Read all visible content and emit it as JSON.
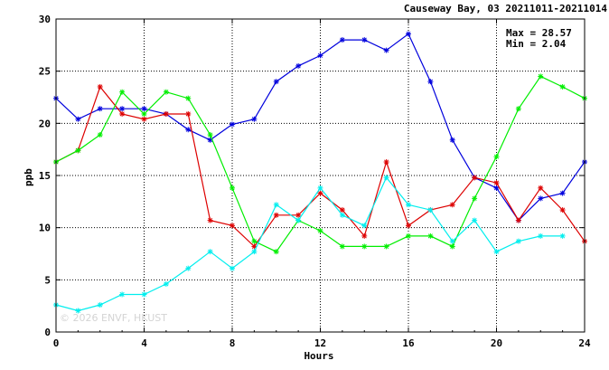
{
  "chart_data": {
    "type": "line",
    "title": "Causeway Bay, 03 20211011-20211014",
    "xlabel": "Hours",
    "ylabel": "ppb",
    "xlim": [
      0,
      24
    ],
    "ylim": [
      0,
      30
    ],
    "xticks": [
      "0",
      "4",
      "8",
      "12",
      "16",
      "20",
      "24"
    ],
    "yticks": [
      "0",
      "5",
      "10",
      "15",
      "20",
      "25",
      "30"
    ],
    "grid": true,
    "stats": {
      "max_label": "Max = 28.57",
      "min_label": "Min =  2.04"
    },
    "watermark": "© 2026 ENVF, HKUST",
    "series": [
      {
        "color": "#0000dd",
        "x": [
          0,
          1,
          2,
          3,
          4,
          5,
          6,
          7,
          8,
          9,
          10,
          11,
          12,
          13,
          14,
          15,
          16,
          17,
          18,
          19,
          20,
          21,
          22,
          23,
          24
        ],
        "y": [
          22.4,
          20.4,
          21.4,
          21.4,
          21.4,
          20.9,
          19.4,
          18.4,
          19.9,
          20.4,
          24.0,
          25.5,
          26.5,
          28.0,
          28.0,
          27.0,
          28.57,
          24.0,
          18.4,
          14.8,
          13.8,
          10.7,
          12.8,
          13.3,
          16.3
        ]
      },
      {
        "color": "#dd0000",
        "x": [
          0,
          1,
          2,
          3,
          4,
          5,
          6,
          7,
          8,
          9,
          10,
          11,
          12,
          13,
          14,
          15,
          16,
          17,
          18,
          19,
          20,
          21,
          22,
          23,
          24
        ],
        "y": [
          16.3,
          17.4,
          23.5,
          20.9,
          20.4,
          20.9,
          20.9,
          10.7,
          10.2,
          8.2,
          11.2,
          11.2,
          13.3,
          11.7,
          9.2,
          16.3,
          10.2,
          11.7,
          12.2,
          14.8,
          14.3,
          10.7,
          13.8,
          11.7,
          8.7
        ]
      },
      {
        "color": "#00ee00",
        "x": [
          0,
          1,
          2,
          3,
          4,
          5,
          6,
          7,
          8,
          9,
          10,
          11,
          12,
          13,
          14,
          15,
          16,
          17,
          18,
          19,
          20,
          21,
          22,
          23,
          24
        ],
        "y": [
          16.3,
          17.4,
          18.9,
          23.0,
          20.9,
          23.0,
          22.4,
          18.9,
          13.8,
          8.7,
          7.7,
          10.7,
          9.7,
          8.2,
          8.2,
          8.2,
          9.2,
          9.2,
          8.2,
          12.8,
          16.8,
          21.4,
          24.5,
          23.5,
          22.4
        ]
      },
      {
        "color": "#00eeee",
        "x": [
          0,
          1,
          2,
          3,
          4,
          5,
          6,
          7,
          8,
          9,
          10,
          11,
          12,
          13,
          14,
          15,
          16,
          17,
          18,
          19,
          20,
          21,
          22,
          23
        ],
        "y": [
          2.6,
          2.04,
          2.6,
          3.6,
          3.6,
          4.6,
          6.1,
          7.7,
          6.1,
          7.7,
          12.2,
          10.7,
          13.8,
          11.2,
          10.2,
          14.8,
          12.2,
          11.7,
          8.7,
          10.7,
          7.7,
          8.7,
          9.2,
          9.2
        ]
      }
    ]
  }
}
